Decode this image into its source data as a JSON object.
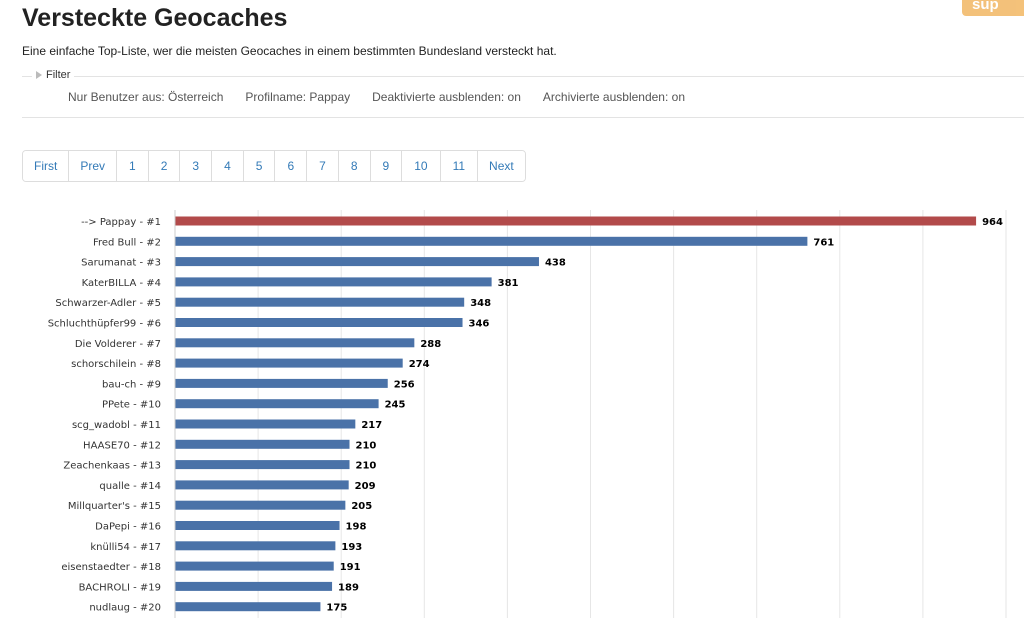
{
  "header": {
    "title": "Versteckte Geocaches",
    "subtitle": "Eine einfache Top-Liste, wer die meisten Geocaches in einem bestimmten Bundesland versteckt hat.",
    "support_label": "sup"
  },
  "filter": {
    "legend": "Filter",
    "values": [
      "Nur Benutzer aus: Österreich",
      "Profilname: Pappay",
      "Deaktivierte ausblenden: on",
      "Archivierte ausblenden: on"
    ]
  },
  "pagination": {
    "first": "First",
    "prev": "Prev",
    "pages": [
      "1",
      "2",
      "3",
      "4",
      "5",
      "6",
      "7",
      "8",
      "9",
      "10",
      "11"
    ],
    "next": "Next"
  },
  "colors": {
    "highlight_bar": "#b24a4a",
    "default_bar": "#4a72a8",
    "grid": "#e6e6e6"
  },
  "chart_data": {
    "type": "bar",
    "orientation": "horizontal",
    "categories": [
      "--> Pappay - #1",
      "Fred Bull - #2",
      "Sarumanat - #3",
      "KaterBILLA - #4",
      "Schwarzer-Adler - #5",
      "Schluchthüpfer99 - #6",
      "Die Volderer - #7",
      "schorschilein - #8",
      "bau-ch - #9",
      "PPete - #10",
      "scg_wadobl - #11",
      "HAASE70 - #12",
      "Zeachenkaas - #13",
      "qualle - #14",
      "Millquarter's - #15",
      "DaPepi - #16",
      "knülli54 - #17",
      "eisenstaedter - #18",
      "BACHROLI - #19",
      "nudlaug - #20"
    ],
    "values": [
      964,
      761,
      438,
      381,
      348,
      346,
      288,
      274,
      256,
      245,
      217,
      210,
      210,
      209,
      205,
      198,
      193,
      191,
      189,
      175
    ],
    "highlight_index": 0,
    "xlim": [
      0,
      1000
    ],
    "grid": true
  }
}
